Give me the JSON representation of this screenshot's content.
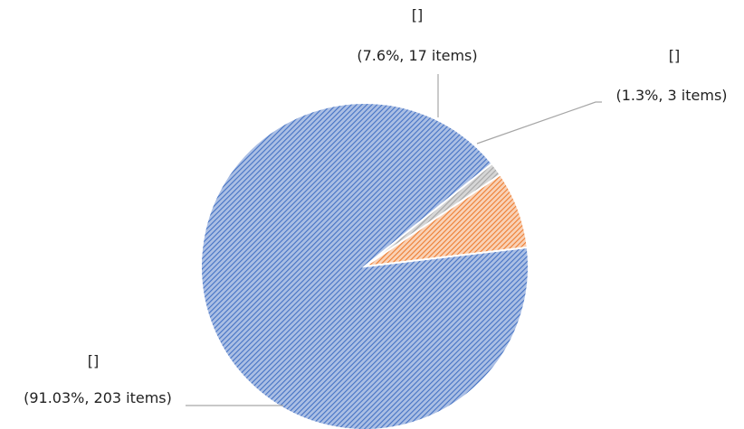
{
  "chart_data": {
    "type": "pie",
    "start_angle_deg": 39,
    "direction": "counterclockwise",
    "legend": "none",
    "fill_pattern": "diagonal-hatch",
    "slices": [
      {
        "name": "[]",
        "value": 203,
        "percent": 91.03,
        "label": "(91.03%, 203 items)",
        "color": "#4472C4"
      },
      {
        "name": "[]",
        "value": 17,
        "percent": 7.6,
        "label": "(7.6%, 17 items)",
        "color": "#ED7D31"
      },
      {
        "name": "[]",
        "value": 3,
        "percent": 1.3,
        "label": "(1.3%, 3 items)",
        "color": "#A5A5A5"
      }
    ],
    "leader_line_color": "#A6A6A6"
  }
}
